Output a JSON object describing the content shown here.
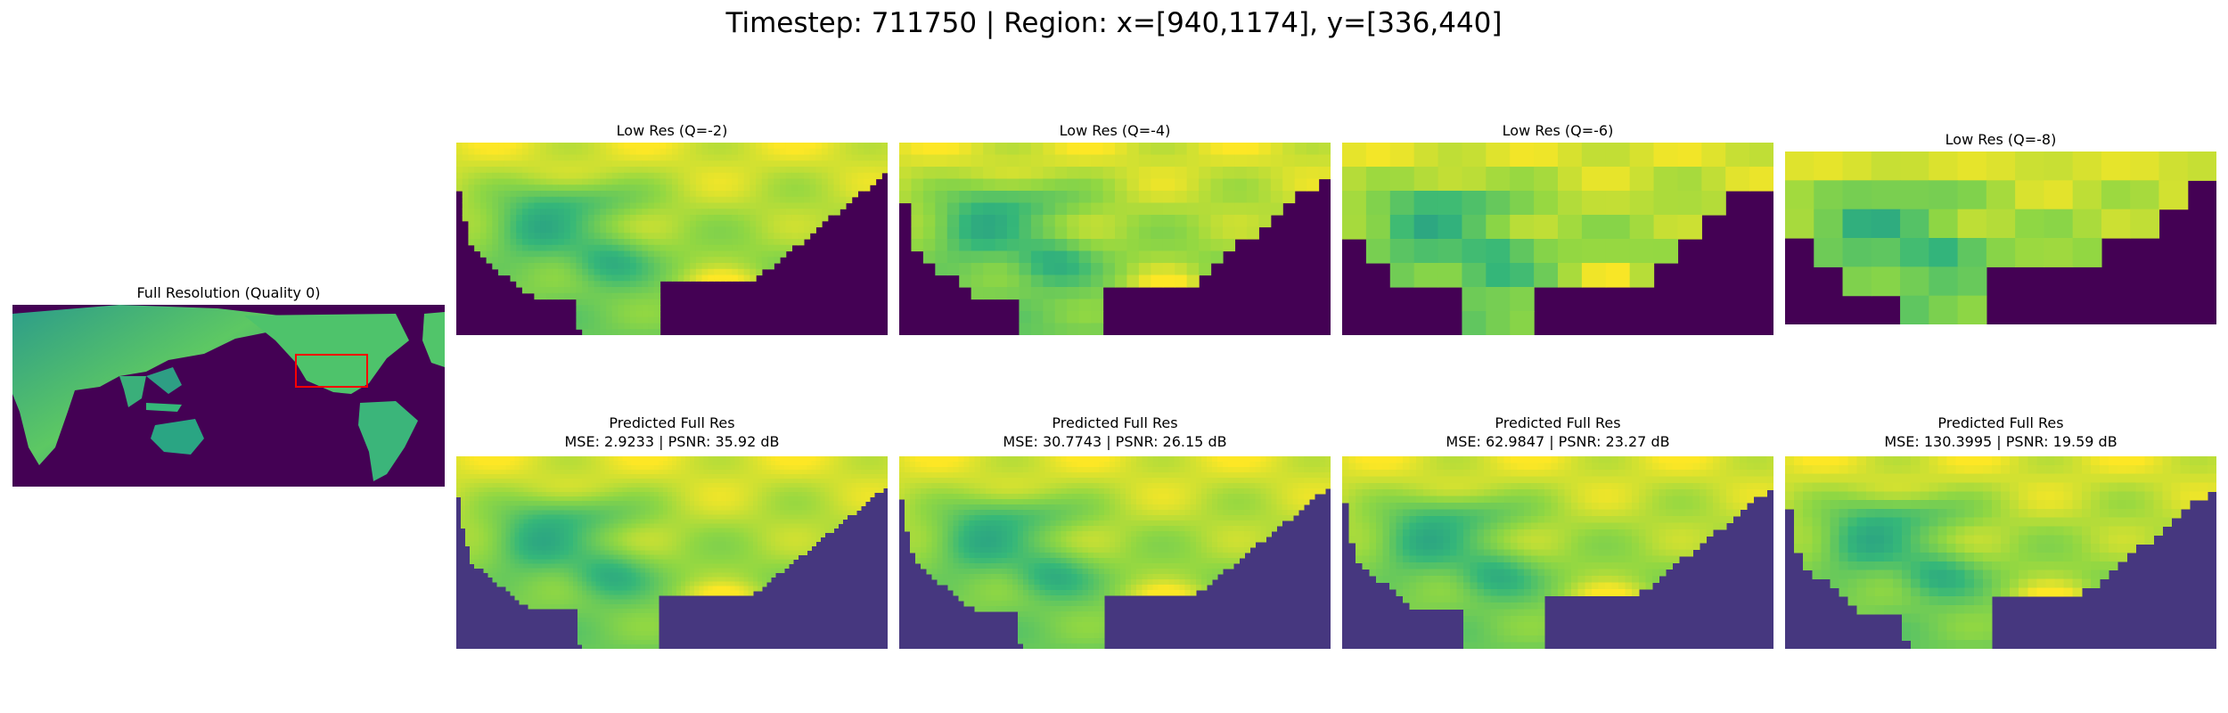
{
  "suptitle": "Timestep: 711750 | Region: x=[940,1174], y=[336,440]",
  "panels": {
    "full": {
      "title": "Full Resolution (Quality 0)"
    },
    "lr2": {
      "title": "Low Res (Q=-2)"
    },
    "lr4": {
      "title": "Low Res (Q=-4)"
    },
    "lr6": {
      "title": "Low Res (Q=-6)"
    },
    "lr8": {
      "title": "Low Res (Q=-8)"
    },
    "pr2": {
      "title": "Predicted Full Res",
      "metrics": "MSE: 2.9233 | PSNR: 35.92 dB"
    },
    "pr4": {
      "title": "Predicted Full Res",
      "metrics": "MSE: 30.7743 | PSNR: 26.15 dB"
    },
    "pr6": {
      "title": "Predicted Full Res",
      "metrics": "MSE: 62.9847 | PSNR: 23.27 dB"
    },
    "pr8": {
      "title": "Predicted Full Res",
      "metrics": "MSE: 130.3995 | PSNR: 19.59 dB"
    }
  },
  "colors": {
    "background": "#440154",
    "land_low": "#31688e",
    "land_mid": "#35b779",
    "land_high": "#fde725",
    "ocean_predicted": "#46377f",
    "region_box": "#ff0000"
  }
}
